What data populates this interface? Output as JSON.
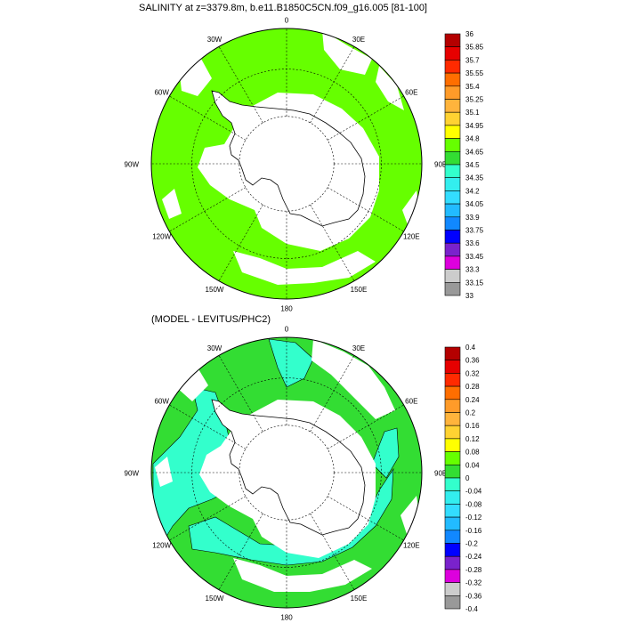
{
  "panels": [
    {
      "title": "SALINITY at z=3379.8m, b.e11.B1850C5CN.f09_g16.005 [81-100]",
      "lon_labels": [
        "0",
        "30E",
        "60E",
        "90E",
        "120E",
        "150E",
        "180",
        "150W",
        "120W",
        "90W",
        "60W",
        "30W"
      ],
      "colorbar": {
        "labels": [
          "36",
          "35.85",
          "35.7",
          "35.55",
          "35.4",
          "35.25",
          "35.1",
          "34.95",
          "34.8",
          "34.65",
          "34.5",
          "34.35",
          "34.2",
          "34.05",
          "33.9",
          "33.75",
          "33.6",
          "33.45",
          "33.3",
          "33.15",
          "33"
        ],
        "colors": [
          "#b40000",
          "#e60000",
          "#ff2a00",
          "#ff6e00",
          "#ff9b29",
          "#ffb43c",
          "#ffd232",
          "#ffff00",
          "#66ff00",
          "#33dd33",
          "#33ffcc",
          "#33eeee",
          "#33ddff",
          "#22bbff",
          "#1188ff",
          "#0000ff",
          "#7a22cc",
          "#dd00dd",
          "#cccccc",
          "#999999"
        ]
      },
      "dominant_fill": "#66ff00",
      "secondary_fill": "#33dd33"
    },
    {
      "title": "(MODEL - LEVITUS/PHC2)",
      "lon_labels": [
        "0",
        "30E",
        "60E",
        "90E",
        "120E",
        "150E",
        "180",
        "150W",
        "120W",
        "90W",
        "60W",
        "30W"
      ],
      "colorbar": {
        "labels": [
          "0.4",
          "0.36",
          "0.32",
          "0.28",
          "0.24",
          "0.2",
          "0.16",
          "0.12",
          "0.08",
          "0.04",
          "0",
          "-0.04",
          "-0.08",
          "-0.12",
          "-0.16",
          "-0.2",
          "-0.24",
          "-0.28",
          "-0.32",
          "-0.36",
          "-0.4"
        ],
        "colors": [
          "#b40000",
          "#e60000",
          "#ff2a00",
          "#ff6e00",
          "#ff9b29",
          "#ffb43c",
          "#ffd232",
          "#ffff00",
          "#66ff00",
          "#33dd33",
          "#33ffcc",
          "#33eeee",
          "#33ddff",
          "#22bbff",
          "#1188ff",
          "#0000ff",
          "#7a22cc",
          "#dd00dd",
          "#cccccc",
          "#999999"
        ]
      },
      "dominant_fill": "#33dd33",
      "secondary_fill": "#33ffcc"
    }
  ]
}
